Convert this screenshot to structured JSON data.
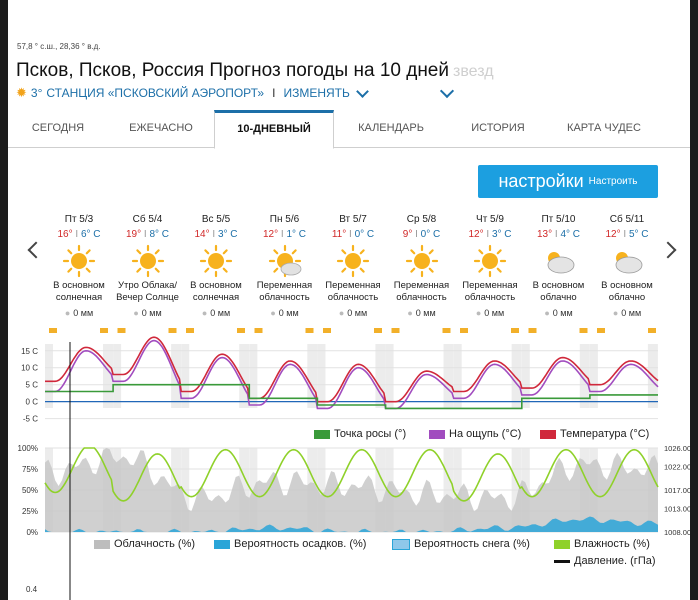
{
  "location": {
    "coords": "57,8 ° с.ш., 28,36 ° в.д.",
    "title": "Псков, Псков, Россия Прогноз погоды на 10 дней",
    "ghost_text": "звезд",
    "station_temp": "3°",
    "station_name": "СТАНЦИЯ «ПСКОВСКИЙ АЭРОПОРТ»",
    "change_label": "ИЗМЕНЯТЬ",
    "separator": "I"
  },
  "tabs": [
    "СЕГОДНЯ",
    "ЕЖЕЧАСНО",
    "10-ДНЕВНЫЙ",
    "КАЛЕНДАРЬ",
    "ИСТОРИЯ",
    "КАРТА ЧУДЕС"
  ],
  "active_tab": 2,
  "settings": {
    "big_label": "настройки",
    "small_label": "Настроить"
  },
  "days": [
    {
      "name": "Пт 5/3",
      "hi": "16°",
      "lo": "6° C",
      "icon": "sun-icon",
      "cond1": "В основном",
      "cond2": "солнечная",
      "precip": "0 мм"
    },
    {
      "name": "Сб 5/4",
      "hi": "19°",
      "lo": "8° C",
      "icon": "sun-icon",
      "cond1": "Утро Облака/",
      "cond2": "Вечер Солнце",
      "precip": "0 мм"
    },
    {
      "name": "Вс 5/5",
      "hi": "14°",
      "lo": "3° C",
      "icon": "sun-icon",
      "cond1": "В основном",
      "cond2": "солнечная",
      "precip": "0 мм"
    },
    {
      "name": "Пн 5/6",
      "hi": "12°",
      "lo": "1° C",
      "icon": "partly-sunny-icon",
      "cond1": "Переменная",
      "cond2": "облачность",
      "precip": "0 мм"
    },
    {
      "name": "Вт 5/7",
      "hi": "11°",
      "lo": "0° C",
      "icon": "sun-icon",
      "cond1": "Переменная",
      "cond2": "облачность",
      "precip": "0 мм"
    },
    {
      "name": "Ср 5/8",
      "hi": "9°",
      "lo": "0° C",
      "icon": "sun-icon",
      "cond1": "Переменная",
      "cond2": "облачность",
      "precip": "0 мм"
    },
    {
      "name": "Чт 5/9",
      "hi": "12°",
      "lo": "3° C",
      "icon": "sun-icon",
      "cond1": "Переменная",
      "cond2": "облачность",
      "precip": "0 мм"
    },
    {
      "name": "Пт 5/10",
      "hi": "13°",
      "lo": "4° C",
      "icon": "cloudy-icon",
      "cond1": "В основном",
      "cond2": "облачно",
      "precip": "0 мм"
    },
    {
      "name": "Сб 5/11",
      "hi": "12°",
      "lo": "5° C",
      "icon": "cloudy-icon",
      "cond1": "В основном",
      "cond2": "облачно",
      "precip": "0 мм"
    }
  ],
  "colors": {
    "temperature": "#d0283b",
    "feels_like": "#a14cbf",
    "dew_point": "#3a9a3a",
    "cloud": "#bdbdbd",
    "precip_prob": "#2aa5d8",
    "snow_prob": "#8fc8ea",
    "humidity": "#8fd12a",
    "pressure": "#111111",
    "accent": "#1c6fa8"
  },
  "chart_data": [
    {
      "type": "line",
      "y_ticks": [
        "15 C",
        "10 C",
        "5 C",
        "0 C",
        "-5 C"
      ],
      "ylim": [
        -6,
        17
      ],
      "x": [
        "Пт 5/3",
        "Сб 5/4",
        "Вс 5/5",
        "Пн 5/6",
        "Вт 5/7",
        "Ср 5/8",
        "Чт 5/9",
        "Пт 5/10",
        "Сб 5/11"
      ],
      "series": [
        {
          "name": "Температура (°C)",
          "values": [
            16,
            19,
            14,
            12,
            11,
            9,
            12,
            13,
            12
          ],
          "lows": [
            6,
            8,
            3,
            1,
            0,
            0,
            3,
            4,
            5
          ]
        },
        {
          "name": "На ощупь (°C)",
          "values": [
            15,
            18,
            13,
            11,
            10,
            8,
            11,
            12,
            11
          ],
          "lows": [
            3,
            6,
            1,
            -1,
            -2,
            -2,
            1,
            2,
            3
          ]
        },
        {
          "name": "Точка росы (°)",
          "values": [
            3,
            5,
            5,
            1,
            -1,
            -2,
            -2,
            1,
            2
          ]
        }
      ]
    },
    {
      "type": "line",
      "y_ticks": [
        "100%",
        "75%",
        "50%",
        "25%",
        "0%"
      ],
      "y2_ticks": [
        "1026.00",
        "1022.00",
        "1017.00",
        "1013.00",
        "1008.00"
      ],
      "ylim": [
        0,
        100
      ],
      "y2lim": [
        1008,
        1026
      ],
      "series": [
        {
          "name": "Облачность (%)",
          "values": [
            70,
            90,
            40,
            60,
            55,
            45,
            40,
            80,
            75
          ]
        },
        {
          "name": "Вероятность осадков. (%)",
          "values": [
            0,
            0,
            0,
            5,
            0,
            0,
            5,
            15,
            10
          ]
        },
        {
          "name": "Вероятность снега (%)",
          "values": [
            0,
            0,
            0,
            0,
            0,
            0,
            0,
            0,
            0
          ]
        },
        {
          "name": "Влажность (%)",
          "values": [
            75,
            65,
            70,
            70,
            70,
            70,
            65,
            70,
            70
          ]
        },
        {
          "name": "Давление. (гПа)",
          "values": [
            1022,
            1017,
            1009,
            1013,
            1018,
            1025,
            1023,
            1018,
            1016
          ]
        }
      ]
    }
  ],
  "bottom_axis_label": "0.4"
}
